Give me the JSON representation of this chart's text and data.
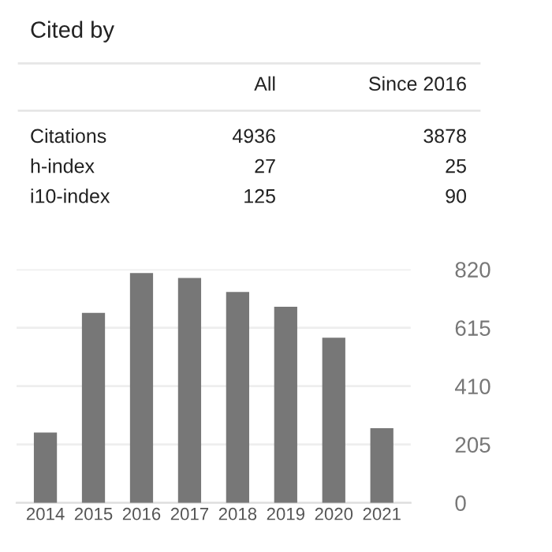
{
  "chart_data": [
    {
      "type": "other",
      "title": "Cited by",
      "annotations": [
        "All",
        "Since 2016",
        "Citations",
        "4936",
        "3878",
        "h-index",
        "27",
        "25",
        "i10-index",
        "125",
        "90"
      ]
    },
    {
      "type": "bar",
      "categories": [
        "2014",
        "2015",
        "2016",
        "2017",
        "2018",
        "2019",
        "2020",
        "2021"
      ],
      "values": [
        247,
        667,
        807,
        790,
        741,
        689,
        580,
        262
      ],
      "color": "#777777",
      "ylim": [
        0,
        820
      ],
      "yticks": [
        0,
        205,
        410,
        615,
        820
      ],
      "grid": "y"
    }
  ]
}
